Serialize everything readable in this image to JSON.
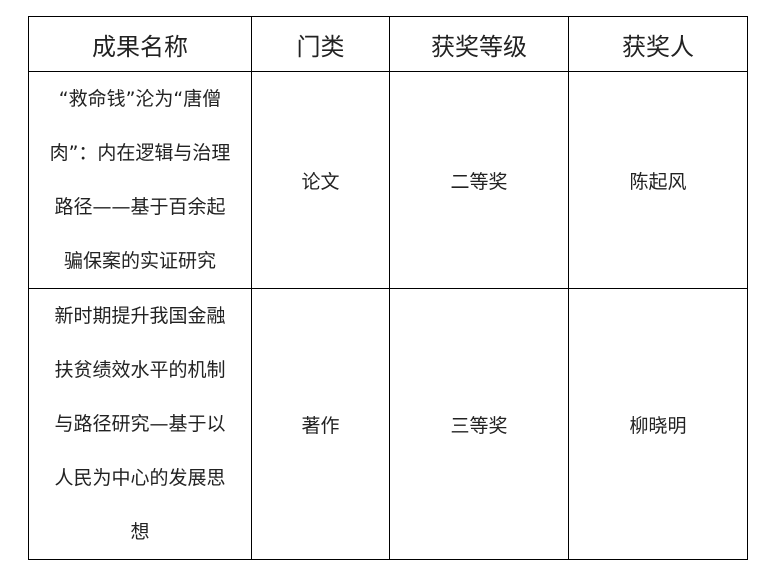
{
  "table": {
    "headers": [
      "成果名称",
      "门类",
      "获奖等级",
      "获奖人"
    ],
    "rows": [
      {
        "title_lines": [
          "“救命钱”沦为“唐僧",
          "肉”：内在逻辑与治理",
          "路径——基于百余起",
          "骗保案的实证研究"
        ],
        "category": "论文",
        "award_level": "二等奖",
        "winner": "陈起风"
      },
      {
        "title_lines": [
          "新时期提升我国金融",
          "扶贫绩效水平的机制",
          "与路径研究—基于以",
          "人民为中心的发展思",
          "想"
        ],
        "category": "著作",
        "award_level": "三等奖",
        "winner": "柳晓明"
      }
    ]
  }
}
